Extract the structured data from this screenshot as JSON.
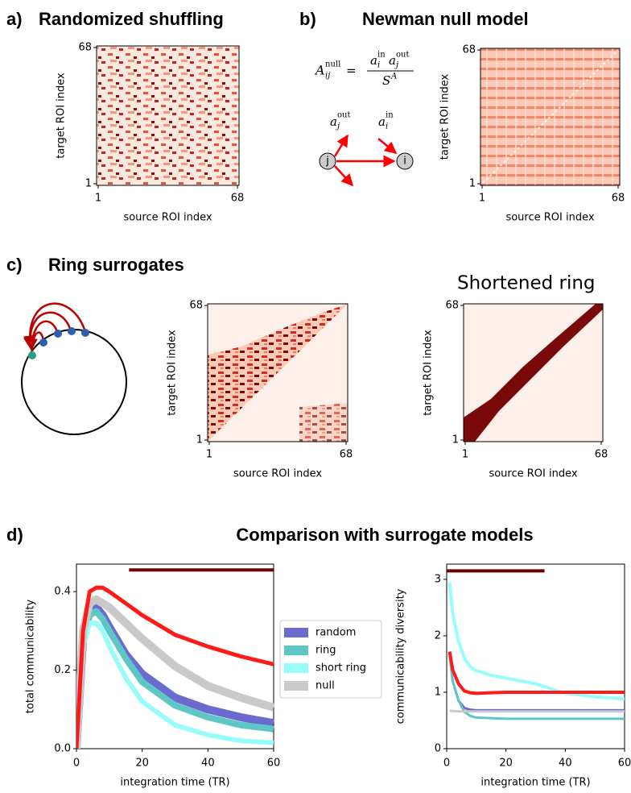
{
  "panels": {
    "a": {
      "label": "a)",
      "title": "Randomized shuffling",
      "heatmap": {
        "xlabel": "source ROI index",
        "ylabel": "target ROI index",
        "xticks": [
          1,
          68
        ],
        "yticks": [
          1,
          68
        ]
      }
    },
    "b": {
      "label": "b)",
      "title": "Newman null model",
      "equation": {
        "lhs": "A",
        "lhs_sub": "ij",
        "lhs_sup": "null",
        "eq": "=",
        "num": [
          "a",
          "i",
          "in",
          "a",
          "j",
          "out"
        ],
        "den": "S",
        "den_sup": "A"
      },
      "diagram": {
        "out_label": "a",
        "out_sub": "j",
        "out_sup": "out",
        "in_label": "a",
        "in_sub": "i",
        "in_sup": "in",
        "node_j": "j",
        "node_i": "i"
      },
      "heatmap": {
        "xlabel": "source ROI index",
        "ylabel": "target ROI index",
        "xticks": [
          1,
          68
        ],
        "yticks": [
          1,
          68
        ]
      }
    },
    "c": {
      "label": "c)",
      "title": "Ring surrogates",
      "subtitle": "Shortened ring",
      "heatmap_ring": {
        "xlabel": "source ROI index",
        "ylabel": "target ROI index",
        "xticks": [
          1,
          68
        ],
        "yticks": [
          1,
          68
        ]
      },
      "heatmap_short": {
        "xlabel": "source ROI index",
        "ylabel": "target ROI index",
        "xticks": [
          1,
          68
        ],
        "yticks": [
          1,
          68
        ]
      }
    },
    "d": {
      "label": "d)",
      "title": "Comparison with surrogate models"
    }
  },
  "chart_data": [
    {
      "type": "line",
      "xlabel": "integration time (TR)",
      "ylabel": "total communicability",
      "x": [
        0,
        2,
        4,
        6,
        8,
        10,
        15,
        20,
        30,
        40,
        50,
        60
      ],
      "xlim": [
        0,
        60
      ],
      "ylim": [
        0,
        0.47
      ],
      "xticks": [
        0,
        20,
        40,
        60
      ],
      "yticks": [
        {
          "value": 0,
          "label": "0.0"
        },
        {
          "value": 0.2,
          "label": "0.2"
        },
        {
          "value": 0.4,
          "label": "0.4"
        }
      ],
      "legend": "outside right",
      "series": [
        {
          "name": "random",
          "color": "#6b6bcf",
          "values": [
            0,
            0.28,
            0.35,
            0.36,
            0.34,
            0.31,
            0.24,
            0.19,
            0.13,
            0.1,
            0.08,
            0.065
          ]
        },
        {
          "name": "ring",
          "color": "#5fc6c6",
          "values": [
            0,
            0.28,
            0.34,
            0.35,
            0.33,
            0.3,
            0.23,
            0.17,
            0.11,
            0.08,
            0.06,
            0.05
          ]
        },
        {
          "name": "short ring",
          "color": "#99fcfc",
          "values": [
            0,
            0.26,
            0.32,
            0.32,
            0.3,
            0.26,
            0.18,
            0.12,
            0.06,
            0.035,
            0.02,
            0.015
          ]
        },
        {
          "name": "null",
          "color": "#c9c9c9",
          "values": [
            0,
            0.3,
            0.37,
            0.38,
            0.37,
            0.36,
            0.32,
            0.28,
            0.21,
            0.16,
            0.13,
            0.105
          ]
        },
        {
          "color": "#ff1a1a",
          "values": [
            0,
            0.3,
            0.4,
            0.41,
            0.41,
            0.4,
            0.37,
            0.34,
            0.29,
            0.26,
            0.235,
            0.215
          ]
        }
      ],
      "significance": {
        "color": "#6b0000",
        "x": [
          16,
          60
        ],
        "y": 0.455
      }
    },
    {
      "type": "line",
      "xlabel": "integration time (TR)",
      "ylabel": "communicability diversity",
      "x": [
        1,
        2,
        4,
        6,
        8,
        10,
        15,
        20,
        30,
        40,
        50,
        60
      ],
      "xlim": [
        0,
        60
      ],
      "ylim": [
        0,
        3.27
      ],
      "xticks": [
        0,
        20,
        40,
        60
      ],
      "yticks": [
        0,
        1,
        2,
        3
      ],
      "series": [
        {
          "color": "#6b6bcf",
          "values": [
            1.7,
            1.2,
            0.85,
            0.72,
            0.69,
            0.68,
            0.68,
            0.68,
            0.68,
            0.68,
            0.68,
            0.68
          ]
        },
        {
          "color": "#5fc6c6",
          "values": [
            1.65,
            1.2,
            0.85,
            0.65,
            0.58,
            0.55,
            0.54,
            0.53,
            0.53,
            0.53,
            0.53,
            0.53
          ]
        },
        {
          "color": "#99fcfc",
          "values": [
            2.95,
            2.4,
            1.9,
            1.6,
            1.45,
            1.38,
            1.3,
            1.25,
            1.15,
            0.98,
            0.92,
            0.88
          ]
        },
        {
          "color": "#c9c9c9",
          "values": [
            0.67,
            0.67,
            0.66,
            0.66,
            0.66,
            0.66,
            0.66,
            0.66,
            0.66,
            0.66,
            0.66,
            0.66
          ]
        },
        {
          "color": "#ff1a1a",
          "values": [
            1.72,
            1.4,
            1.15,
            1.02,
            0.99,
            0.98,
            0.99,
            1.0,
            1.0,
            1.0,
            1.0,
            1.0
          ]
        }
      ],
      "significance": {
        "color": "#6b0000",
        "x": [
          0,
          33
        ],
        "y": 3.15
      }
    }
  ]
}
